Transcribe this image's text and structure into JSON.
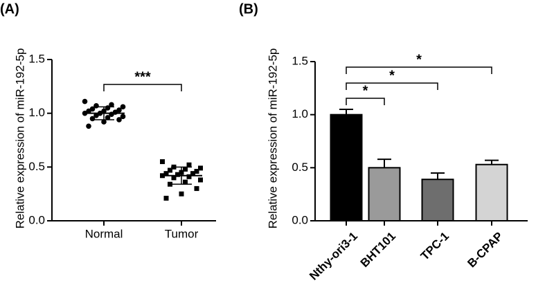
{
  "chart_data": [
    {
      "type": "strip",
      "panel_label": "(A)",
      "y_label": "Relative expression of miR-192-5p",
      "categories": [
        "Normal",
        "Tumor"
      ],
      "markers": [
        "circle",
        "square"
      ],
      "values": [
        [
          1.11,
          1.08,
          1.07,
          1.06,
          1.05,
          1.04,
          1.03,
          1.02,
          1.02,
          1.01,
          1.0,
          1.0,
          0.99,
          0.98,
          0.97,
          0.96,
          0.95,
          0.94,
          0.92,
          0.88
        ],
        [
          0.55,
          0.52,
          0.5,
          0.49,
          0.48,
          0.47,
          0.46,
          0.45,
          0.44,
          0.44,
          0.43,
          0.42,
          0.41,
          0.4,
          0.38,
          0.36,
          0.34,
          0.3,
          0.25,
          0.21
        ]
      ],
      "means": [
        1.0,
        0.42
      ],
      "errors": [
        0.06,
        0.08
      ],
      "color": "#000000",
      "ylim": [
        0,
        1.5
      ],
      "yticks": [
        {
          "value": 0,
          "label": "0.0"
        },
        {
          "value": 0.5,
          "label": "0.5"
        },
        {
          "value": 1,
          "label": "1.0"
        },
        {
          "value": 1.5,
          "label": "1.5"
        }
      ],
      "comparisons": [
        {
          "pair": [
            0,
            1
          ],
          "label": "***"
        }
      ]
    },
    {
      "type": "bar",
      "panel_label": "(B)",
      "y_label": "Relative expression of miR-192-5p",
      "categories": [
        "Nthy-ori3-1",
        "BHT101",
        "TPC-1",
        "B-CPAP"
      ],
      "values": [
        1.0,
        0.5,
        0.39,
        0.53
      ],
      "errors": [
        0.05,
        0.08,
        0.06,
        0.04
      ],
      "colors": [
        "#000000",
        "#9a9a9a",
        "#6e6e6e",
        "#d4d4d4"
      ],
      "ylim": [
        0,
        1.5
      ],
      "yticks": [
        {
          "value": 0,
          "label": "0.0"
        },
        {
          "value": 0.5,
          "label": "0.5"
        },
        {
          "value": 1,
          "label": "1.0"
        },
        {
          "value": 1.5,
          "label": "1.5"
        }
      ],
      "comparisons": [
        {
          "pair": [
            0,
            1
          ],
          "label": "*"
        },
        {
          "pair": [
            0,
            2
          ],
          "label": "*"
        },
        {
          "pair": [
            0,
            3
          ],
          "label": "*"
        }
      ]
    }
  ]
}
